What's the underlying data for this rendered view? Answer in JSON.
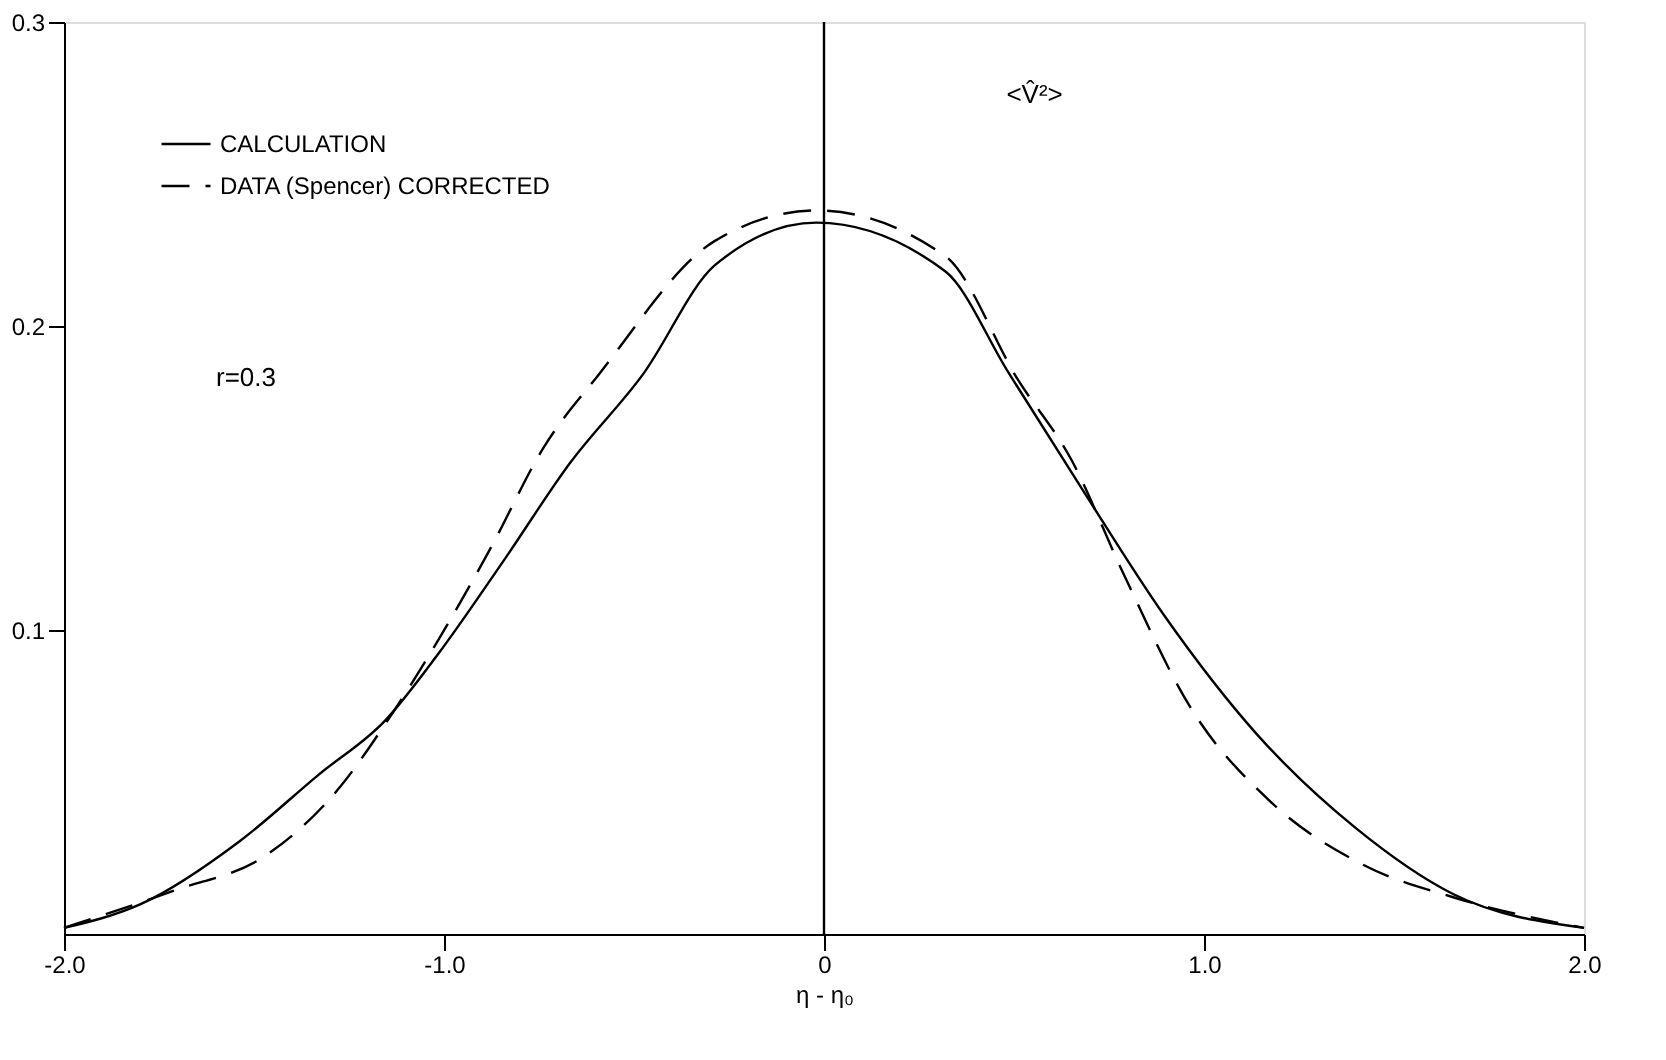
{
  "chart_data": {
    "type": "line",
    "xlabel": "η - η₀",
    "xlim": [
      -2,
      2
    ],
    "ylim": [
      0,
      0.3
    ],
    "xticks": [
      {
        "value": -2,
        "label": "-2.0"
      },
      {
        "value": -1,
        "label": "-1.0"
      },
      {
        "value": 0,
        "label": "0"
      },
      {
        "value": 1,
        "label": "1.0"
      },
      {
        "value": 2,
        "label": "2.0"
      }
    ],
    "yticks": [
      0.1,
      0.2,
      0.3
    ],
    "grid": false,
    "legend": "top left",
    "marker": "none",
    "annotations": [
      "<V̂²>",
      "r=0.3"
    ],
    "ref_lines": [
      {
        "axis": "x",
        "value": 0,
        "color": "#000000"
      }
    ],
    "series": [
      {
        "name": "CALCULATION",
        "color": "#000000",
        "line_style": "solid",
        "x": [
          -2.0,
          -1.797,
          -1.536,
          -1.328,
          -1.155,
          -1.016,
          -0.842,
          -0.668,
          -0.477,
          -0.287,
          -0.02,
          0.319,
          0.484,
          0.686,
          0.894,
          1.137,
          1.398,
          1.658,
          2.0
        ],
        "values": [
          0.002,
          0.0099,
          0.0307,
          0.0526,
          0.0702,
          0.092,
          0.123,
          0.155,
          0.184,
          0.22,
          0.234,
          0.218,
          0.185,
          0.145,
          0.105,
          0.066,
          0.035,
          0.013,
          0.002
        ]
      },
      {
        "name": "DATA (Spencer) CORRECTED",
        "color": "#000000",
        "line_style": "dashed",
        "x": [
          -2.0,
          -1.71,
          -1.467,
          -1.276,
          -1.155,
          -1.016,
          -0.877,
          -0.738,
          -0.593,
          -0.287,
          -0.02,
          0.319,
          0.512,
          0.651,
          0.79,
          0.964,
          1.172,
          1.415,
          1.658,
          2.0
        ],
        "values": [
          0.002,
          0.0143,
          0.026,
          0.048,
          0.069,
          0.0965,
          0.127,
          0.16,
          0.184,
          0.228,
          0.238,
          0.223,
          0.182,
          0.156,
          0.118,
          0.0746,
          0.0439,
          0.023,
          0.012,
          0.002
        ]
      }
    ]
  }
}
